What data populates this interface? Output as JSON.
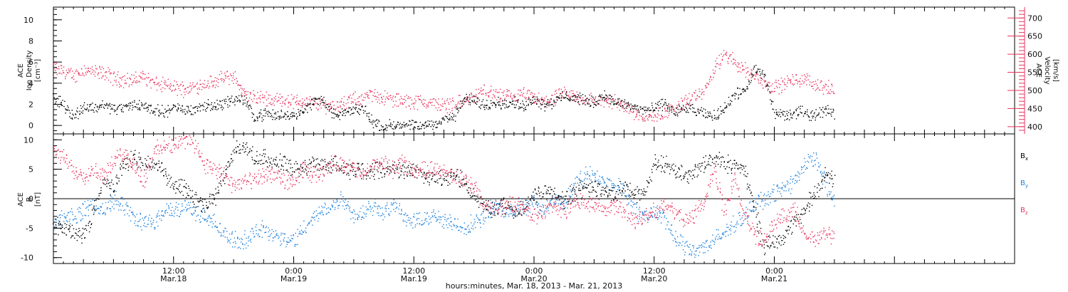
{
  "figure": {
    "footer": "hours:minutes, Mar. 18, 2013 - Mar. 21, 2013"
  },
  "colors": {
    "black": "#000000",
    "blue": "#1f82dc",
    "red": "#e8365f"
  },
  "time_axis": {
    "start_hours": 0,
    "end_hours": 96,
    "ticks": [
      {
        "hours": 12,
        "time": "12:00",
        "date": "Mar.18"
      },
      {
        "hours": 24,
        "time": "0:00",
        "date": "Mar.19"
      },
      {
        "hours": 36,
        "time": "12:00",
        "date": "Mar.19"
      },
      {
        "hours": 48,
        "time": "0:00",
        "date": "Mar.20"
      },
      {
        "hours": 60,
        "time": "12:00",
        "date": "Mar.20"
      },
      {
        "hours": 72,
        "time": "0:00",
        "date": "Mar.21"
      }
    ]
  },
  "panels": {
    "top": {
      "left_label_line1": "ACE",
      "left_label_line2": "Ion Density",
      "left_label_line3": "[cm⁻³]",
      "right_label_line1": "ACE",
      "right_label_line2": "Velocity",
      "right_label_line3": "[km/s]"
    },
    "bottom": {
      "left_label_line1": "ACE",
      "left_label_line2": "B",
      "left_label_line3": "[nT]",
      "legend": [
        {
          "name": "B",
          "sub": "x",
          "color": "#000000"
        },
        {
          "name": "B",
          "sub": "y",
          "color": "#1f82dc"
        },
        {
          "name": "B",
          "sub": "z",
          "color": "#e8365f"
        }
      ]
    }
  },
  "chart_data": [
    {
      "type": "scatter",
      "panel": "top",
      "ylim_left": [
        -0.8,
        11.2
      ],
      "left_ticks": [
        0,
        2,
        4,
        6,
        8,
        10
      ],
      "ylim_right": [
        380,
        730
      ],
      "right_ticks": [
        400,
        450,
        500,
        550,
        600,
        650,
        700
      ],
      "series": [
        {
          "axis": "left",
          "color": "#000000",
          "x": [
            0,
            1,
            2,
            3,
            4,
            5,
            6,
            7,
            8,
            9,
            10,
            11,
            12,
            13,
            14,
            15,
            16,
            17,
            18,
            19,
            20,
            21,
            22,
            23,
            24,
            25,
            26,
            27,
            28,
            29,
            30,
            31,
            32,
            33,
            34,
            35,
            36,
            37,
            38,
            39,
            40,
            41,
            42,
            43,
            44,
            45,
            46,
            47,
            48,
            49,
            50,
            51,
            52,
            53,
            54,
            55,
            56,
            57,
            58,
            59,
            60,
            61,
            62,
            63,
            64,
            65,
            66,
            67,
            68,
            69,
            70,
            71,
            72,
            73,
            74,
            75,
            76,
            77,
            78
          ],
          "values": [
            2.6,
            2.0,
            0.9,
            1.8,
            1.7,
            2.0,
            1.6,
            1.7,
            2.0,
            1.9,
            1.5,
            1.3,
            1.7,
            1.5,
            1.6,
            1.9,
            1.9,
            2.1,
            2.5,
            2.5,
            0.9,
            1.1,
            1.0,
            1.0,
            1.1,
            1.5,
            2.3,
            2.5,
            0.9,
            1.2,
            1.5,
            1.6,
            0.2,
            0.0,
            0.05,
            0.0,
            0.0,
            0.0,
            0.2,
            0.6,
            0.9,
            2.5,
            2.4,
            2.0,
            2.3,
            2.0,
            2.2,
            1.9,
            2.6,
            2.0,
            2.3,
            2.8,
            2.7,
            2.4,
            2.2,
            2.9,
            2.3,
            2.0,
            1.8,
            1.5,
            1.6,
            2.2,
            1.3,
            1.7,
            1.4,
            1.1,
            0.9,
            1.7,
            3.0,
            3.2,
            5.3,
            4.7,
            1.2,
            1.0,
            1.2,
            1.3,
            1.0,
            1.5,
            1.2
          ]
        },
        {
          "axis": "right",
          "color": "#e8365f",
          "x": [
            0,
            1,
            2,
            3,
            4,
            5,
            6,
            7,
            8,
            9,
            10,
            11,
            12,
            13,
            14,
            15,
            16,
            17,
            18,
            19,
            20,
            21,
            22,
            23,
            24,
            25,
            26,
            27,
            28,
            29,
            30,
            31,
            32,
            33,
            34,
            35,
            36,
            37,
            38,
            39,
            40,
            41,
            42,
            43,
            44,
            45,
            46,
            47,
            48,
            49,
            50,
            51,
            52,
            53,
            54,
            55,
            56,
            57,
            58,
            59,
            60,
            61,
            62,
            63,
            64,
            65,
            66,
            67,
            68,
            69,
            70,
            71,
            72,
            73,
            74,
            75,
            76,
            77,
            78
          ],
          "values": [
            560,
            555,
            540,
            560,
            550,
            550,
            535,
            530,
            530,
            540,
            520,
            515,
            510,
            505,
            510,
            520,
            525,
            535,
            540,
            490,
            480,
            480,
            475,
            475,
            470,
            470,
            465,
            460,
            460,
            465,
            475,
            480,
            490,
            480,
            475,
            470,
            470,
            470,
            465,
            460,
            465,
            470,
            485,
            500,
            490,
            485,
            480,
            490,
            475,
            470,
            480,
            490,
            485,
            475,
            475,
            470,
            470,
            460,
            440,
            430,
            430,
            440,
            450,
            470,
            480,
            500,
            560,
            600,
            580,
            560,
            540,
            520,
            510,
            520,
            530,
            530,
            520,
            510,
            500
          ]
        }
      ]
    },
    {
      "type": "scatter",
      "panel": "bottom",
      "ylim": [
        -11,
        11
      ],
      "yticks": [
        -10,
        -5,
        0,
        5,
        10
      ],
      "zero_line": true,
      "series": [
        {
          "name": "Bx",
          "color": "#000000",
          "x": [
            0,
            1,
            2,
            3,
            4,
            5,
            6,
            7,
            8,
            9,
            10,
            11,
            12,
            13,
            14,
            15,
            16,
            17,
            18,
            19,
            20,
            21,
            22,
            23,
            24,
            25,
            26,
            27,
            28,
            29,
            30,
            31,
            32,
            33,
            34,
            35,
            36,
            37,
            38,
            39,
            40,
            41,
            42,
            43,
            44,
            45,
            46,
            47,
            48,
            49,
            50,
            51,
            52,
            53,
            54,
            55,
            56,
            57,
            58,
            59,
            60,
            61,
            62,
            63,
            64,
            65,
            66,
            67,
            68,
            69,
            70,
            71,
            72,
            73,
            74,
            75,
            76,
            77,
            78
          ],
          "values": [
            -4,
            -5,
            -6,
            -6,
            -2,
            3,
            2,
            6,
            7,
            6,
            6,
            5,
            2,
            2,
            0,
            -1,
            0,
            4,
            8,
            9,
            7,
            7,
            6,
            6,
            5,
            5,
            6,
            6,
            6,
            5,
            5,
            5,
            5,
            5,
            5,
            5,
            5,
            4,
            4,
            3,
            4,
            3,
            0,
            -1,
            -2,
            -1,
            -2,
            -2,
            1,
            1,
            1,
            0,
            1,
            2,
            2,
            1,
            1,
            2,
            1,
            1,
            6,
            6,
            5,
            4,
            5,
            6,
            7,
            6,
            6,
            5,
            -2,
            -8,
            -7,
            -6,
            -4,
            -2,
            1,
            4,
            3
          ]
        },
        {
          "name": "By",
          "color": "#1f82dc",
          "x": [
            0,
            1,
            2,
            3,
            4,
            5,
            6,
            7,
            8,
            9,
            10,
            11,
            12,
            13,
            14,
            15,
            16,
            17,
            18,
            19,
            20,
            21,
            22,
            23,
            24,
            25,
            26,
            27,
            28,
            29,
            30,
            31,
            32,
            33,
            34,
            35,
            36,
            37,
            38,
            39,
            40,
            41,
            42,
            43,
            44,
            45,
            46,
            47,
            48,
            49,
            50,
            51,
            52,
            53,
            54,
            55,
            56,
            57,
            58,
            59,
            60,
            61,
            62,
            63,
            64,
            65,
            66,
            67,
            68,
            69,
            70,
            71,
            72,
            73,
            74,
            75,
            76,
            77,
            78
          ],
          "values": [
            -4,
            -3,
            -3,
            -2,
            -1,
            -2,
            0,
            -1,
            -3,
            -4,
            -4,
            -2,
            -2,
            -1,
            -2,
            -3,
            -4,
            -6,
            -7,
            -7,
            -6,
            -5,
            -6,
            -7,
            -7,
            -5,
            -3,
            -2,
            -1,
            0,
            -3,
            -2,
            -1,
            -2,
            -1,
            -3,
            -4,
            -3,
            -3,
            -4,
            -4,
            -5,
            -4,
            -3,
            -1,
            -2,
            -2,
            -1,
            -1,
            -2,
            0,
            -1,
            2,
            4,
            4,
            3,
            2,
            2,
            -2,
            -3,
            -2,
            -3,
            -7,
            -8,
            -9,
            -8,
            -7,
            -6,
            -4,
            -3,
            -1,
            0,
            1,
            2,
            3,
            6,
            7,
            3,
            -1
          ]
        },
        {
          "name": "Bz",
          "color": "#e8365f",
          "x": [
            0,
            1,
            2,
            3,
            4,
            5,
            6,
            7,
            8,
            9,
            10,
            11,
            12,
            13,
            14,
            15,
            16,
            17,
            18,
            19,
            20,
            21,
            22,
            23,
            24,
            25,
            26,
            27,
            28,
            29,
            30,
            31,
            32,
            33,
            34,
            35,
            36,
            37,
            38,
            39,
            40,
            41,
            42,
            43,
            44,
            45,
            46,
            47,
            48,
            49,
            50,
            51,
            52,
            53,
            54,
            55,
            56,
            57,
            58,
            59,
            60,
            61,
            62,
            63,
            64,
            65,
            66,
            67,
            68,
            69,
            70,
            71,
            72,
            73,
            74,
            75,
            76,
            77,
            78
          ],
          "values": [
            8,
            7,
            5,
            4,
            5,
            4,
            6,
            8,
            6,
            3,
            8,
            9,
            9,
            10,
            10,
            6,
            5,
            4,
            2,
            3,
            3,
            4,
            4,
            3,
            3,
            5,
            4,
            5,
            6,
            6,
            5,
            4,
            6,
            6,
            5,
            6,
            5,
            5,
            5,
            5,
            4,
            3,
            2,
            -1,
            -2,
            -1,
            -1,
            -2,
            -3,
            -2,
            -1,
            -2,
            0,
            -1,
            -1,
            -2,
            -1,
            -2,
            -4,
            -3,
            -2,
            -1,
            -2,
            -4,
            -3,
            0,
            5,
            -2,
            4,
            -3,
            -6,
            -7,
            -4,
            -3,
            -2,
            -6,
            -7,
            -6,
            -6
          ]
        }
      ]
    }
  ]
}
